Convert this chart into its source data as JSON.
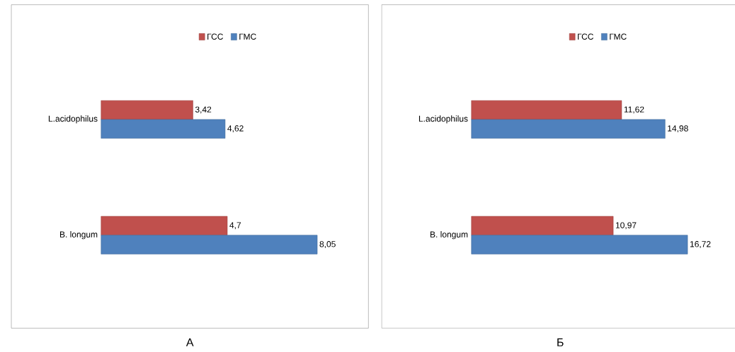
{
  "chart_data": [
    {
      "type": "bar",
      "orientation": "horizontal",
      "categories": [
        "L.acidophilus",
        "B. longum"
      ],
      "legend": "top",
      "annotations": [
        "А"
      ],
      "series": [
        {
          "name": "ГСС",
          "color": "#c0504d",
          "values": [
            3.42,
            4.7
          ],
          "value_labels": [
            "3,42",
            "4,7"
          ]
        },
        {
          "name": "ГМС",
          "color": "#4f81bd",
          "values": [
            4.62,
            8.05
          ],
          "value_labels": [
            "4,62",
            "8,05"
          ]
        }
      ]
    },
    {
      "type": "bar",
      "orientation": "horizontal",
      "categories": [
        "L.acidophilus",
        "B. longum"
      ],
      "legend": "top",
      "annotations": [
        "Б"
      ],
      "series": [
        {
          "name": "ГСС",
          "color": "#c0504d",
          "values": [
            11.62,
            10.97
          ],
          "value_labels": [
            "11,62",
            "10,97"
          ]
        },
        {
          "name": "ГМС",
          "color": "#4f81bd",
          "values": [
            14.98,
            16.72
          ],
          "value_labels": [
            "14,98",
            "16,72"
          ]
        }
      ]
    }
  ]
}
